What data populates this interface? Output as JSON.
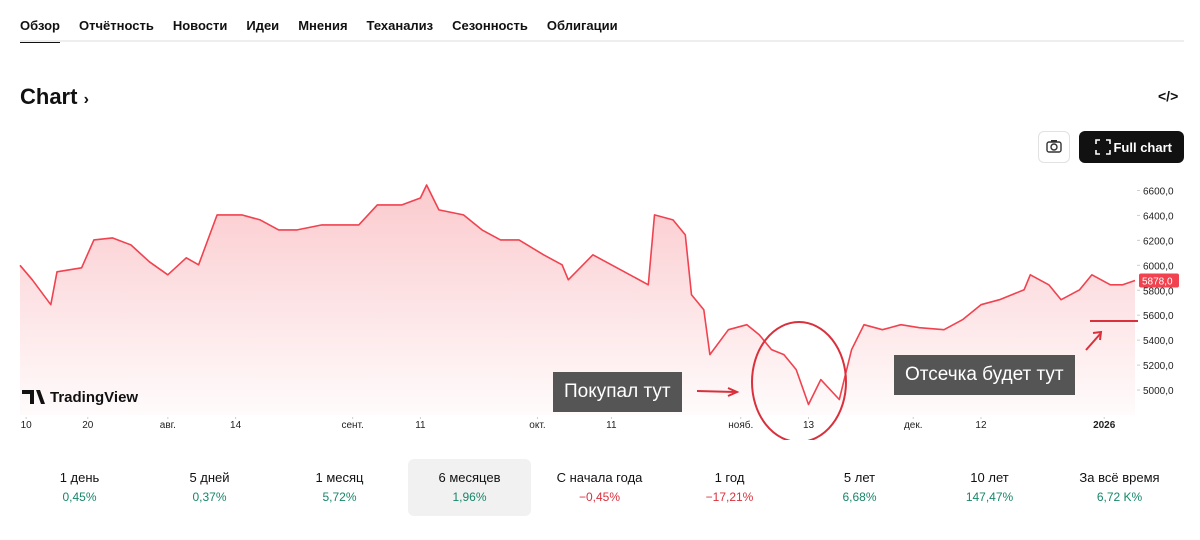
{
  "tabs": [
    "Обзор",
    "Отчётность",
    "Новости",
    "Идеи",
    "Мнения",
    "Теханализ",
    "Сезонность",
    "Облигации"
  ],
  "header": {
    "title": "Chart",
    "full_chart": "Full chart"
  },
  "watermark": "TradingView",
  "annotations": [
    "Покупал тут",
    "Отсечка будет тут"
  ],
  "chart_data": {
    "type": "line",
    "x": [
      -1,
      1,
      4,
      5,
      9,
      11,
      14,
      17,
      20,
      23,
      26,
      28,
      31,
      35,
      38,
      41,
      44,
      48,
      51,
      54,
      57,
      61,
      64,
      65,
      67,
      71,
      74,
      77,
      80,
      84,
      87,
      88,
      92,
      95,
      98,
      101,
      102,
      105,
      107,
      108,
      110,
      111,
      114,
      117,
      119,
      121,
      123,
      125,
      127,
      129,
      132,
      134,
      136,
      139,
      142,
      145,
      149,
      152,
      155,
      158,
      162,
      163,
      166,
      168,
      171,
      173,
      176,
      178,
      180
    ],
    "series": [
      {
        "color": "#f0424f",
        "values": [
          6000,
          5884,
          5684,
          5948,
          5980,
          6204,
          6220,
          6164,
          6028,
          5924,
          6060,
          6004,
          6404,
          6404,
          6364,
          6284,
          6284,
          6324,
          6324,
          6324,
          6484,
          6484,
          6540,
          6644,
          6444,
          6404,
          6284,
          6204,
          6204,
          6084,
          6004,
          5884,
          6084,
          6004,
          5924,
          5844,
          6404,
          6364,
          6244,
          5764,
          5644,
          5284,
          5484,
          5524,
          5444,
          5324,
          5284,
          5164,
          4884,
          5084,
          4924,
          5324,
          5524,
          5484,
          5524,
          5500,
          5484,
          5564,
          5684,
          5724,
          5804,
          5924,
          5844,
          5724,
          5804,
          5924,
          5844,
          5844,
          5878
        ]
      }
    ],
    "last_price": {
      "value": 5878,
      "label": "5878,0"
    },
    "xlim": [
      -1,
      180
    ],
    "xticks": [
      {
        "value": 0,
        "label": "10"
      },
      {
        "value": 10,
        "label": "20"
      },
      {
        "value": 23,
        "label": "авг."
      },
      {
        "value": 34,
        "label": "14"
      },
      {
        "value": 53,
        "label": "сент."
      },
      {
        "value": 64,
        "label": "11"
      },
      {
        "value": 83,
        "label": "окт."
      },
      {
        "value": 95,
        "label": "11"
      },
      {
        "value": 116,
        "label": "нояб."
      },
      {
        "value": 127,
        "label": "13"
      },
      {
        "value": 144,
        "label": "дек."
      },
      {
        "value": 155,
        "label": "12"
      },
      {
        "value": 175,
        "label": "2026"
      }
    ],
    "ylim": [
      4800,
      6700
    ],
    "yticks": [
      {
        "value": 5000,
        "label": "5000,0"
      },
      {
        "value": 5200,
        "label": "5200,0"
      },
      {
        "value": 5400,
        "label": "5400,0"
      },
      {
        "value": 5600,
        "label": "5600,0"
      },
      {
        "value": 5800,
        "label": "5800,0"
      },
      {
        "value": 6000,
        "label": "6000,0"
      },
      {
        "value": 6200,
        "label": "6200,0"
      },
      {
        "value": 6400,
        "label": "6400,0"
      },
      {
        "value": 6600,
        "label": "6600,0"
      }
    ]
  },
  "periods": [
    {
      "label": "1 день",
      "change": "0,45%"
    },
    {
      "label": "5 дней",
      "change": "0,37%"
    },
    {
      "label": "1 месяц",
      "change": "5,72%"
    },
    {
      "label": "6 месяцев",
      "change": "1,96%"
    },
    {
      "label": "С начала года",
      "change": "−0,45%"
    },
    {
      "label": "1 год",
      "change": "−17,21%"
    },
    {
      "label": "5 лет",
      "change": "6,68%"
    },
    {
      "label": "10 лет",
      "change": "147,47%"
    },
    {
      "label": "За всё время",
      "change": "6,72 K%"
    }
  ]
}
